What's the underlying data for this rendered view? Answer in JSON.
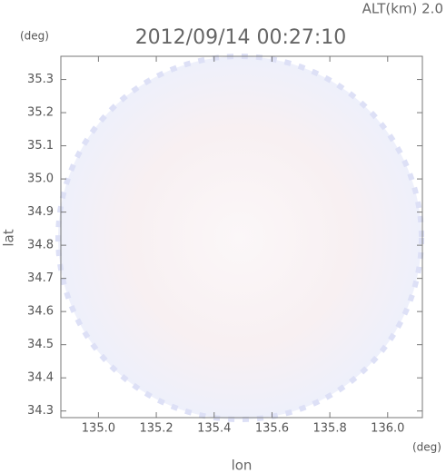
{
  "chart_data": {
    "type": "map",
    "title": "2012/09/14 00:27:10",
    "subtitle": "ALT(km) 2.0",
    "x_label": "lon",
    "y_label": "lat",
    "x_unit": "(deg)",
    "y_unit": "(deg)",
    "xlim": [
      134.87,
      136.12
    ],
    "ylim": [
      34.28,
      35.37
    ],
    "xticks": [
      {
        "value": 135,
        "label": "135.0"
      },
      135.2,
      135.4,
      135.6,
      135.8,
      {
        "value": 136,
        "label": "136.0"
      }
    ],
    "yticks": [
      {
        "value": 34.3,
        "label": "34.3"
      },
      34.4,
      34.5,
      34.6,
      34.7,
      34.8,
      34.9,
      {
        "value": 35,
        "label": "35.0"
      },
      35.1,
      35.2,
      35.3
    ]
  }
}
